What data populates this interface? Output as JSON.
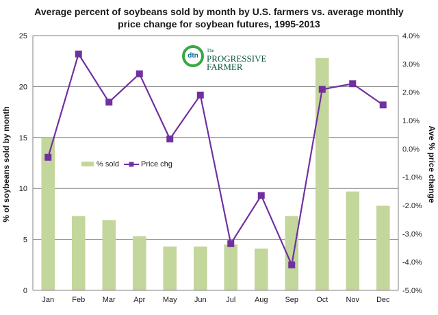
{
  "chart_data": {
    "type": "bar+line",
    "title_lines": [
      "Average percent of soybeans sold by month by U.S. farmers vs. average monthly",
      "price change for soybean futures, 1995-2013"
    ],
    "categories": [
      "Jan",
      "Feb",
      "Mar",
      "Apr",
      "May",
      "Jun",
      "Jul",
      "Aug",
      "Sep",
      "Oct",
      "Nov",
      "Dec"
    ],
    "series": [
      {
        "name": "% sold",
        "type": "bar",
        "axis": "left",
        "color": "#c3d69b",
        "values": [
          15.0,
          7.3,
          6.9,
          5.3,
          4.3,
          4.3,
          4.5,
          4.1,
          7.3,
          22.8,
          9.7,
          8.3
        ]
      },
      {
        "name": "Price chg",
        "type": "line",
        "axis": "right",
        "color": "#7030a0",
        "values": [
          -0.3,
          3.35,
          1.65,
          2.65,
          0.35,
          1.9,
          -3.35,
          -1.65,
          -4.1,
          2.1,
          2.3,
          1.55
        ]
      }
    ],
    "left_axis": {
      "label": "% of soybeans sold by month",
      "min": 0,
      "max": 25,
      "step": 5,
      "ticks": [
        "0",
        "5",
        "10",
        "15",
        "20",
        "25"
      ]
    },
    "right_axis": {
      "label": "Ave % price change",
      "min": -5,
      "max": 4,
      "step": 1,
      "ticks": [
        "-5.0%",
        "-4.0%",
        "-3.0%",
        "-2.0%",
        "-1.0%",
        "0.0%",
        "1.0%",
        "2.0%",
        "3.0%",
        "4.0%"
      ]
    },
    "gridlines": true,
    "legend_placement": "upper-left inside plot"
  },
  "logo": {
    "mark": "dtn",
    "word_small": "The",
    "word_big": "PROGRESSIVE FARMER"
  }
}
